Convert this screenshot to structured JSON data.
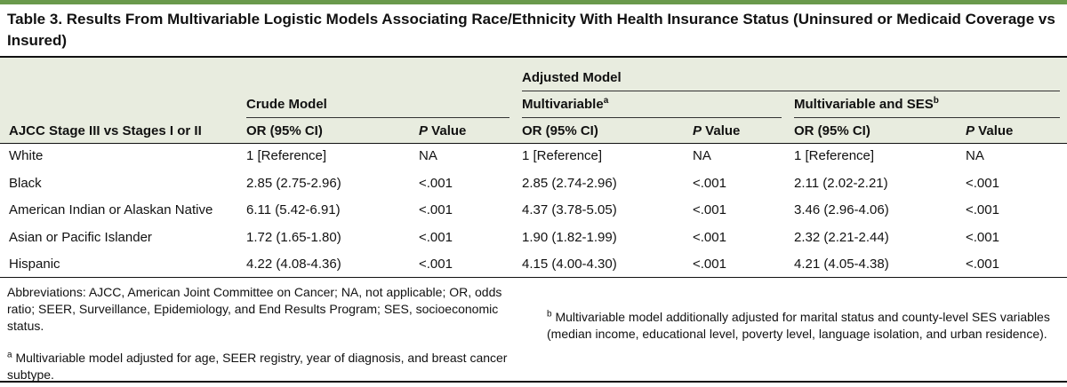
{
  "table": {
    "caption": "Table 3. Results From Multivariable Logistic Models Associating Race/Ethnicity With Health Insurance Status (Uninsured or Medicaid Coverage vs Insured)",
    "header": {
      "stub": "AJCC Stage III vs Stages I or II",
      "adjusted_model": "Adjusted Model",
      "crude_model": "Crude Model",
      "multivariable": "Multivariable",
      "multivariable_sup": "a",
      "multivariable_ses": "Multivariable and SES",
      "multivariable_ses_sup": "b",
      "or_ci": "OR (95% CI)",
      "p_italic": "P",
      "p_rest": " Value"
    },
    "rows": [
      {
        "label": "White",
        "crude_or": "1 [Reference]",
        "crude_p": "NA",
        "mv_or": "1 [Reference]",
        "mv_p": "NA",
        "ses_or": "1 [Reference]",
        "ses_p": "NA"
      },
      {
        "label": "Black",
        "crude_or": "2.85 (2.75-2.96)",
        "crude_p": "<.001",
        "mv_or": "2.85 (2.74-2.96)",
        "mv_p": "<.001",
        "ses_or": "2.11 (2.02-2.21)",
        "ses_p": "<.001"
      },
      {
        "label": "American Indian or Alaskan Native",
        "crude_or": "6.11 (5.42-6.91)",
        "crude_p": "<.001",
        "mv_or": "4.37 (3.78-5.05)",
        "mv_p": "<.001",
        "ses_or": "3.46 (2.96-4.06)",
        "ses_p": "<.001"
      },
      {
        "label": "Asian or Pacific Islander",
        "crude_or": "1.72 (1.65-1.80)",
        "crude_p": "<.001",
        "mv_or": "1.90 (1.82-1.99)",
        "mv_p": "<.001",
        "ses_or": "2.32 (2.21-2.44)",
        "ses_p": "<.001"
      },
      {
        "label": "Hispanic",
        "crude_or": "4.22 (4.08-4.36)",
        "crude_p": "<.001",
        "mv_or": "4.15 (4.00-4.30)",
        "mv_p": "<.001",
        "ses_or": "4.21 (4.05-4.38)",
        "ses_p": "<.001"
      }
    ],
    "footnotes": {
      "abbreviations": "Abbreviations: AJCC, American Joint Committee on Cancer; NA, not applicable; OR, odds ratio; SEER, Surveillance, Epidemiology, and End Results Program; SES, socioeconomic status.",
      "a_mark": "a",
      "a_text": "Multivariable model adjusted for age, SEER registry, year of diagnosis, and breast cancer subtype.",
      "b_mark": "b",
      "b_text": "Multivariable model additionally adjusted for marital status and county-level SES variables (median income, educational level, poverty level, language isolation, and urban residence)."
    }
  },
  "colors": {
    "accent_rule": "#6a9a4c",
    "header_shade": "#e8ecdf"
  }
}
